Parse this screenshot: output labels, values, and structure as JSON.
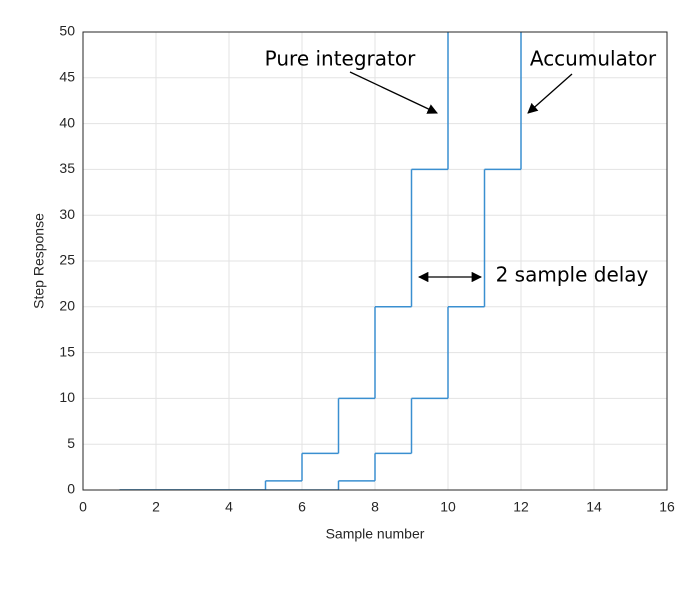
{
  "chart_data": {
    "type": "stairs",
    "xlabel": "Sample number",
    "ylabel": "Step Response",
    "xlim": [
      0,
      16
    ],
    "xticks": [
      0,
      2,
      4,
      6,
      8,
      10,
      12,
      14,
      16
    ],
    "ylim": [
      0,
      50
    ],
    "yticks": [
      0,
      5,
      10,
      15,
      20,
      25,
      30,
      35,
      40,
      45,
      50
    ],
    "grid": true,
    "series": [
      {
        "color": "#3a8fd0",
        "x": [
          1,
          2,
          3,
          4,
          5,
          6,
          7,
          8,
          9,
          10
        ],
        "values": [
          0,
          0,
          0,
          0,
          1,
          4,
          10,
          20,
          35,
          56
        ]
      },
      {
        "color": "#3a8fd0",
        "x": [
          1,
          2,
          3,
          4,
          5,
          6,
          7,
          8,
          9,
          10,
          11,
          12
        ],
        "values": [
          0,
          0,
          0,
          0,
          0,
          0,
          1,
          4,
          10,
          20,
          35,
          56
        ]
      }
    ],
    "annotations": [
      "Pure integrator",
      "Accumulator",
      "2 sample delay"
    ]
  }
}
